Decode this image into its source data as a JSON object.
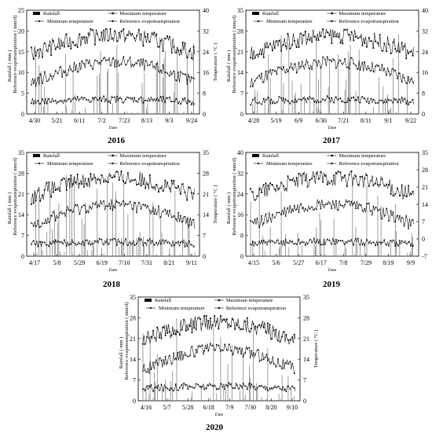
{
  "legend": {
    "rainfall": "Rainfall",
    "tmax": "Maximum temperature",
    "tmin": "Minimum temperature",
    "et": "Reference evapotranspiration"
  },
  "labels": {
    "xlabel": "Date",
    "ylabel_left_1": "Rainfall ( mm )",
    "ylabel_left_2": "Reference evapotranspiration  ( mm/d)",
    "ylabel_right": "Temperature ( °C )"
  },
  "chart_data": [
    {
      "type": "line",
      "year": "2016",
      "x_ticks": [
        "4/30",
        "5/21",
        "6/11",
        "7/2",
        "7/23",
        "8/13",
        "9/3",
        "9/24"
      ],
      "ylim_left": [
        0,
        25
      ],
      "yticks_left": [
        0,
        5,
        10,
        15,
        20,
        25
      ],
      "ylim_right": [
        0,
        40
      ],
      "yticks_right": [
        0,
        8,
        16,
        24,
        32,
        40
      ],
      "rainfall_peaks": [
        0.1,
        0.2,
        0.25,
        0.3,
        0.35,
        0.5,
        0.55,
        0.6,
        0.65,
        0.7,
        0.75,
        0.8,
        0.85,
        0.9
      ]
    },
    {
      "type": "line",
      "year": "2017",
      "x_ticks": [
        "4/28",
        "5/19",
        "6/9",
        "6/30",
        "7/21",
        "8/11",
        "9/1",
        "9/22"
      ],
      "ylim_left": [
        0,
        35
      ],
      "yticks_left": [
        0,
        7,
        14,
        21,
        28,
        35
      ],
      "ylim_right": [
        0,
        40
      ],
      "yticks_right": [
        0,
        8,
        16,
        24,
        32,
        40
      ]
    },
    {
      "type": "line",
      "year": "2018",
      "x_ticks": [
        "4/17",
        "5/8",
        "5/29",
        "6/19",
        "7/10",
        "7/31",
        "8/21",
        "9/11"
      ],
      "ylim_left": [
        0,
        35
      ],
      "yticks_left": [
        0,
        7,
        14,
        21,
        28,
        35
      ],
      "ylim_right": [
        0,
        35
      ],
      "yticks_right": [
        0,
        7,
        14,
        21,
        28,
        35
      ]
    },
    {
      "type": "line",
      "year": "2019",
      "x_ticks": [
        "4/15",
        "5/6",
        "5/27",
        "6/17",
        "7/8",
        "7/29",
        "8/19",
        "9/9"
      ],
      "ylim_left": [
        0,
        40
      ],
      "yticks_left": [
        0,
        8,
        16,
        24,
        32,
        40
      ],
      "ylim_right": [
        -7,
        35
      ],
      "yticks_right": [
        -7,
        0,
        7,
        14,
        21,
        28,
        35
      ]
    },
    {
      "type": "line",
      "year": "2020",
      "x_ticks": [
        "4/16",
        "5/7",
        "5/28",
        "6/18",
        "7/9",
        "7/30",
        "8/20",
        "9/10"
      ],
      "ylim_left": [
        0,
        35
      ],
      "yticks_left": [
        0,
        7,
        14,
        21,
        28,
        35
      ],
      "ylim_right": [
        0,
        35
      ],
      "yticks_right": [
        0,
        7,
        14,
        21,
        28,
        35
      ]
    }
  ]
}
